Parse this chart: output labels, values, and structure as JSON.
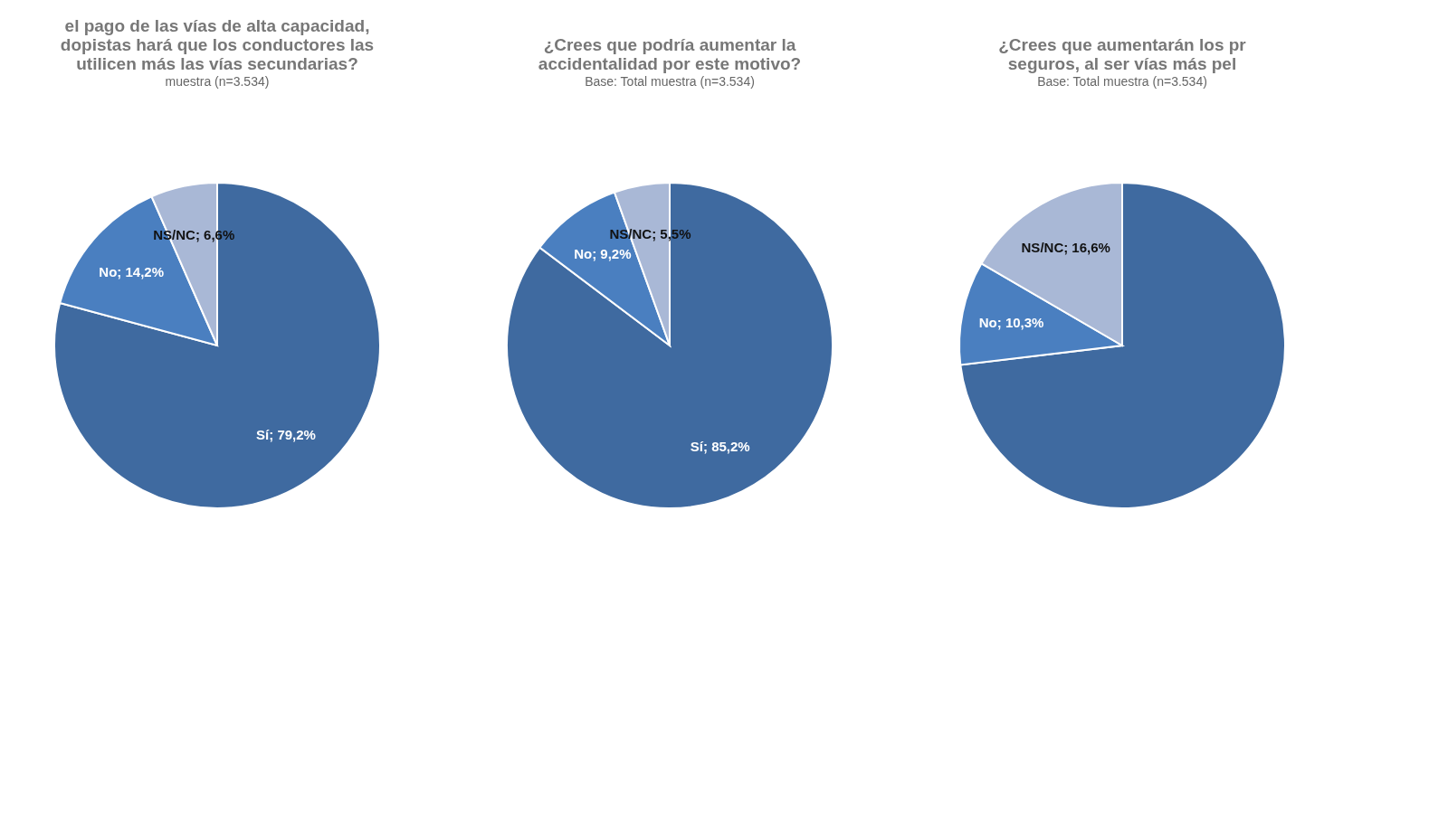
{
  "chart_data": [
    {
      "type": "pie",
      "title": [
        "el pago de las vías de alta capacidad,",
        "dopistas hará que los conductores las",
        "utilicen más las vías secundarias?"
      ],
      "categories": [
        "Sí",
        "No",
        "NS/NC"
      ],
      "values": [
        79.2,
        14.2,
        6.6
      ],
      "colors": [
        "#3f6aa0",
        "#4a7fc0",
        "#a9b8d6"
      ],
      "value_labels": [
        "79,2%",
        "14,2%",
        "6,6%"
      ],
      "annotations": [
        "muestra (n=3.534)"
      ]
    },
    {
      "type": "pie",
      "title": [
        "¿Crees que podría aumentar la",
        "accidentalidad por este motivo?"
      ],
      "categories": [
        "Sí",
        "No",
        "NS/NC"
      ],
      "values": [
        85.2,
        9.2,
        5.5
      ],
      "colors": [
        "#3f6aa0",
        "#4a7fc0",
        "#a9b8d6"
      ],
      "value_labels": [
        "85,2%",
        "9,2%",
        "5,5%"
      ],
      "annotations": [
        "Base: Total muestra (n=3.534)"
      ]
    },
    {
      "type": "pie",
      "title": [
        "¿Crees que aumentarán los pr",
        "seguros, al ser vías más pel"
      ],
      "categories": [
        null,
        "No",
        "NS/NC"
      ],
      "values": [
        73.1,
        10.3,
        16.6
      ],
      "colors": [
        "#3f6aa0",
        "#4a7fc0",
        "#a9b8d6"
      ],
      "value_labels": [
        null,
        "10,3%",
        "16,6%"
      ],
      "annotations": [
        "Base: Total muestra (n=3.534)"
      ]
    }
  ]
}
